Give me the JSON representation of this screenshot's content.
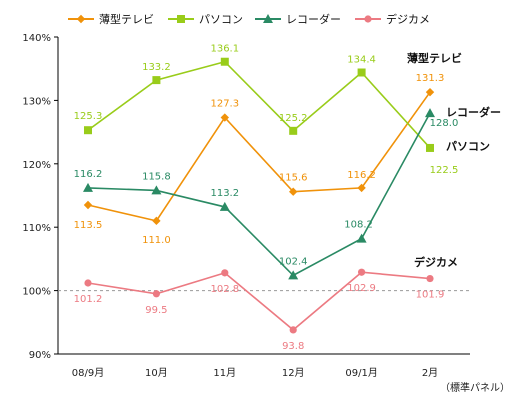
{
  "chart_data": {
    "type": "line",
    "categories": [
      "08/9月",
      "10月",
      "11月",
      "12月",
      "09/1月",
      "2月"
    ],
    "ylim": [
      90,
      140
    ],
    "yticks": [
      90,
      100,
      110,
      120,
      130,
      140
    ],
    "ytick_suffix": "%",
    "reference_line": 100,
    "grid": false,
    "legend_position": "top",
    "note": "（標準パネル）",
    "series": [
      {
        "name": "薄型テレビ",
        "color": "#f0920a",
        "marker": "diamond",
        "values": [
          113.5,
          111.0,
          127.3,
          115.6,
          116.2,
          131.3
        ]
      },
      {
        "name": "パソコン",
        "color": "#99cc1a",
        "marker": "square",
        "values": [
          125.3,
          133.2,
          136.1,
          125.2,
          134.4,
          122.5
        ]
      },
      {
        "name": "レコーダー",
        "color": "#2a8a64",
        "marker": "triangle",
        "values": [
          116.2,
          115.8,
          113.2,
          102.4,
          108.2,
          128.0
        ]
      },
      {
        "name": "デジカメ",
        "color": "#ec7a82",
        "marker": "circle",
        "values": [
          101.2,
          99.5,
          102.8,
          93.8,
          102.9,
          101.9
        ]
      }
    ]
  }
}
